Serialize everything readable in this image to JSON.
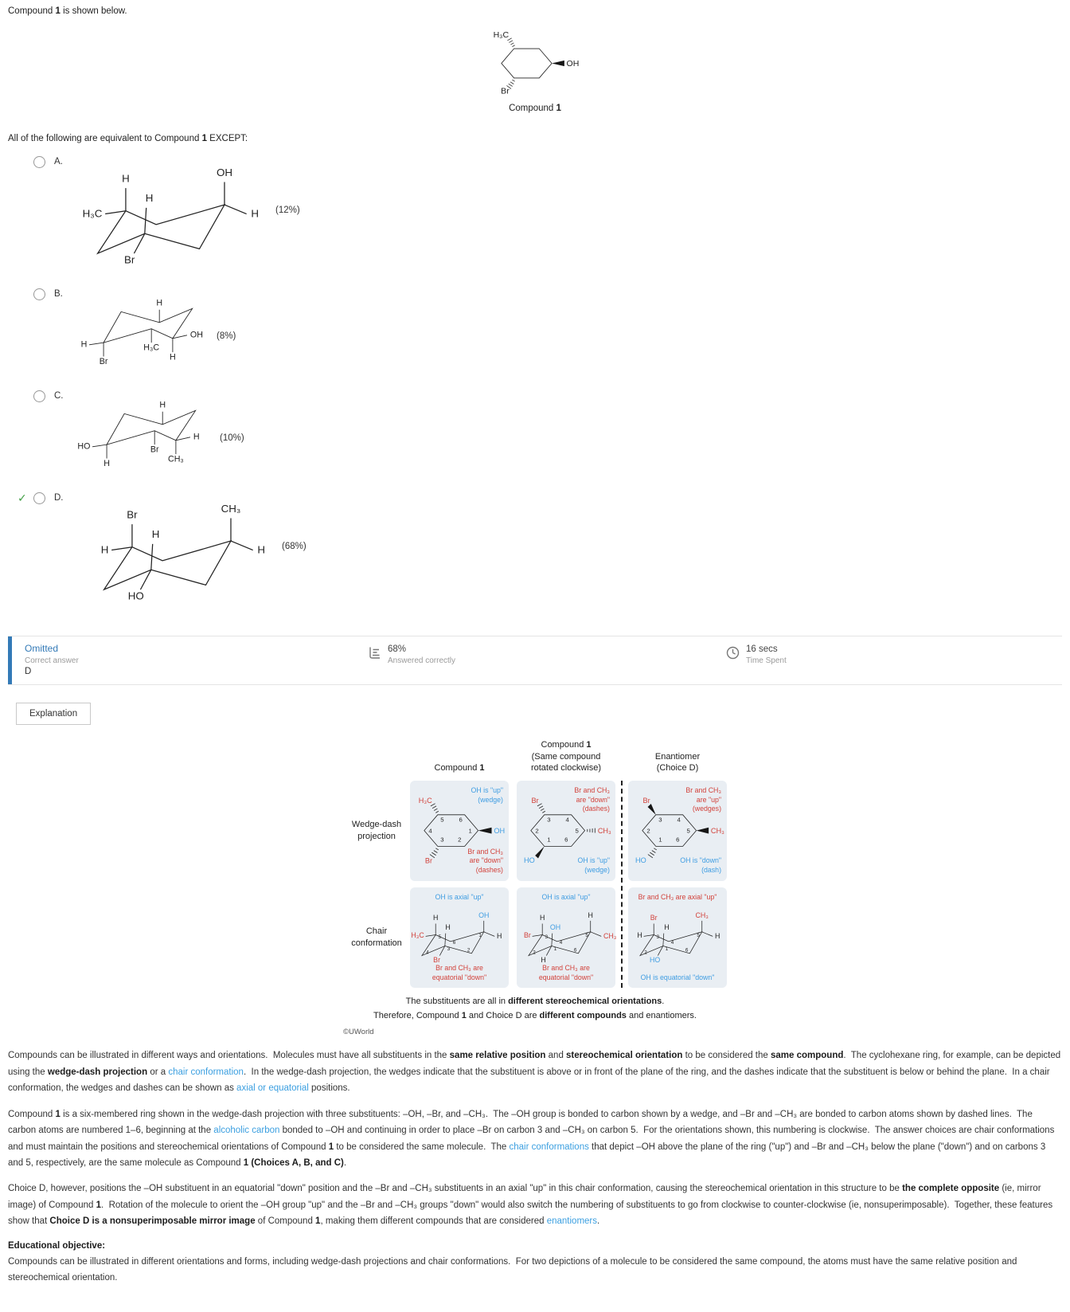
{
  "question": {
    "intro": [
      {
        "t": "Compound "
      },
      {
        "t": "1",
        "b": true
      },
      {
        "t": " is shown below."
      }
    ],
    "stem": [
      {
        "t": "All of the following are equivalent to Compound "
      },
      {
        "t": "1",
        "b": true
      },
      {
        "t": " EXCEPT:"
      }
    ],
    "compound1": {
      "caption": [
        {
          "t": "Compound "
        },
        {
          "t": "1",
          "b": true
        }
      ],
      "labels": {
        "tl": "H₃C",
        "r": "OH",
        "bl": "Br"
      }
    },
    "choices": [
      {
        "letter": "A.",
        "percent": "(12%)",
        "labels": {
          "eqL": "H₃C",
          "axL": "H",
          "axC": "H",
          "axR": "OH",
          "eqR": "H",
          "low": "Br"
        }
      },
      {
        "letter": "B.",
        "percent": "(8%)",
        "labels": {
          "top": "H",
          "eqL": "H",
          "dnL": "Br",
          "dnC": "H₃C",
          "eqR": "OH",
          "dnR": "H"
        }
      },
      {
        "letter": "C.",
        "percent": "(10%)",
        "labels": {
          "top": "H",
          "eqL": "HO",
          "dnL": "H",
          "dnC": "Br",
          "eqR": "H",
          "dnR": "CH₃"
        }
      },
      {
        "letter": "D.",
        "percent": "(68%)",
        "labels": {
          "eqL": "H",
          "axL": "Br",
          "axC": "H",
          "axR": "CH₃",
          "eqR": "H",
          "low": "HO"
        }
      }
    ]
  },
  "result": {
    "status": "Omitted",
    "correct_label": "Correct answer",
    "correct_value": "D",
    "pct": "68%",
    "pct_label": "Answered correctly",
    "time": "16 secs",
    "time_label": "Time Spent"
  },
  "explanation": {
    "tab": "Explanation",
    "figure": {
      "headers": [
        [
          {
            "t": "Compound "
          },
          {
            "t": "1",
            "b": true
          }
        ],
        [
          {
            "t": "Compound "
          },
          {
            "t": "1",
            "b": true
          },
          {
            "t": "\n(Same compound\nrotated clockwise)"
          }
        ],
        [
          {
            "t": "Enantiomer\n(Choice D)"
          }
        ]
      ],
      "row_labels": [
        "Wedge-dash\nprojection",
        "Chair\nconformation"
      ],
      "wedge": [
        {
          "numbers": [
            "5",
            "6",
            "1",
            "2",
            "3",
            "4"
          ],
          "tl": "H₃C",
          "r": "OH",
          "bl": "Br",
          "note_top": "OH is \"up\"\n(wedge)",
          "note_bot": "Br and CH₃\nare \"down\"\n(dashes)"
        },
        {
          "numbers": [
            "3",
            "4",
            "5",
            "6",
            "1",
            "2"
          ],
          "tl": "Br",
          "r": "CH₃",
          "bl": "HO",
          "note_top": "Br and CH₃\nare \"down\"\n(dashes)",
          "note_bot": "OH is \"up\"\n(wedge)"
        },
        {
          "numbers": [
            "3",
            "4",
            "5",
            "6",
            "1",
            "2"
          ],
          "tl": "Br",
          "r": "CH₃",
          "bl": "HO",
          "note_top": "Br and CH₃\nare \"up\"\n(wedges)",
          "note_bot": "OH is \"down\"\n(dash)"
        }
      ],
      "chair": [
        {
          "numbers": [
            "5",
            "4",
            "3",
            "6",
            "1",
            "2"
          ],
          "eqL": "H₃C",
          "axL": "H",
          "axC": "H",
          "axR": "OH",
          "eqR": "H",
          "low": "Br",
          "note_top": "OH is axial \"up\"",
          "note_bot": "Br and CH₃ are\nequatorial \"down\""
        },
        {
          "numbers": [
            "3",
            "2",
            "1",
            "4",
            "5",
            "6"
          ],
          "eqL": "Br",
          "axL": "H",
          "axC": "OH",
          "axR": "H",
          "eqR": "CH₃",
          "low": "H",
          "note_top": "OH is axial \"up\"",
          "note_bot": "Br and CH₃ are\nequatorial \"down\""
        },
        {
          "numbers": [
            "3",
            "2",
            "1",
            "4",
            "5",
            "6"
          ],
          "eqL": "H",
          "axL": "Br",
          "axC": "H",
          "axR": "CH₃",
          "eqR": "H",
          "low": "HO",
          "note_top": "Br and CH₃ are axial \"up\"",
          "note_bot": "OH is equatorial \"down\""
        }
      ],
      "caption": [
        [
          {
            "t": "The substituents are all in "
          },
          {
            "t": "different stereochemical orientations",
            "b": true
          },
          {
            "t": "."
          }
        ],
        [
          {
            "t": "Therefore, Compound "
          },
          {
            "t": "1",
            "b": true
          },
          {
            "t": " and Choice D are "
          },
          {
            "t": "different compounds",
            "b": true
          },
          {
            "t": " and enantiomers."
          }
        ]
      ],
      "copyright": "©UWorld"
    },
    "paragraphs": [
      [
        {
          "t": "Compounds can be illustrated in different ways and orientations.  Molecules must have all substituents in the "
        },
        {
          "t": "same relative position",
          "b": true
        },
        {
          "t": " and "
        },
        {
          "t": "stereoch­emical orientation",
          "b": true
        },
        {
          "t": " to be considered the "
        },
        {
          "t": "same compound",
          "b": true
        },
        {
          "t": ".  The cyclohexane ring, for example, can be depicted using the "
        },
        {
          "t": "wedge-dash projection",
          "b": true
        },
        {
          "t": " or a "
        },
        {
          "t": "chair conformation",
          "a": true
        },
        {
          "t": ".  In the wedge-dash projection, the wedges indicate that the substituent is above or in front of the plane of the ring, and the dashes indicate that the substituent is below or behind the plane.  In a chair conformation, the wedges and dashes can be shown as "
        },
        {
          "t": "axial or equatorial",
          "a": true
        },
        {
          "t": " positions."
        }
      ],
      [
        {
          "t": "Compound "
        },
        {
          "t": "1",
          "b": true
        },
        {
          "t": " is a six-membered ring shown in the wedge-dash projection with three substituents: –OH, –Br, and –CH₃.  The –OH group is bonded to carbon shown by a wedge, and –Br and –CH₃ are bonded to carbon atoms shown by dashed lines.  The carbon atoms are numbered 1–6, beginning at the "
        },
        {
          "t": "alcoholic carbon",
          "a": true
        },
        {
          "t": " bonded to –OH and continuing in order to place –Br on carbon 3 and –CH₃ on carbon 5.  For the orientations shown, this numbering is clockwise.  The answer choices are chair conformations and must maintain the positions and stereochemical orientations of Compound "
        },
        {
          "t": "1",
          "b": true
        },
        {
          "t": " to be considered the same molecule.  The "
        },
        {
          "t": "chair conformations",
          "a": true
        },
        {
          "t": " that depict –OH above the plane of the ring (\"up\") and –Br and –CH₃ below the plane (\"down\") and on carbons 3 and 5, respectively, are the same molecule as Compound "
        },
        {
          "t": "1 (Choices A, B, and C)",
          "b": true
        },
        {
          "t": "."
        }
      ],
      [
        {
          "t": "Choice D, however, positions the –OH substituent in an equatorial \"down\" position and the –Br and –CH₃ substituents in an axial \"up\" in this chair conformation, causing the stereochemical orientation in this structure to be "
        },
        {
          "t": "the complete opposite",
          "b": true
        },
        {
          "t": " (ie, mirror image) of Compound "
        },
        {
          "t": "1",
          "b": true
        },
        {
          "t": ".  Rotation of the molecule to orient the –OH group \"up\" and the –Br and –CH₃ groups \"down\" would also switch the numbering of substituents to go from clockwise to counter-clockwise (ie, nonsuperimposable).  Together, these features show that "
        },
        {
          "t": "Choice D is a nonsuperimposable mirror image",
          "b": true
        },
        {
          "t": " of Compound "
        },
        {
          "t": "1",
          "b": true
        },
        {
          "t": ", making them different compounds that are considered "
        },
        {
          "t": "enantiomers",
          "a": true
        },
        {
          "t": "."
        }
      ]
    ],
    "edu_label": "Educational objective:",
    "edu_text": [
      {
        "t": "Compounds can be illustrated in different orientations and forms, including wedge-dash projections and chair conformations.  For two depictions of a molecule to be considered the same compound, the atoms must have the same relative position and stereochemical orientation."
      }
    ]
  }
}
